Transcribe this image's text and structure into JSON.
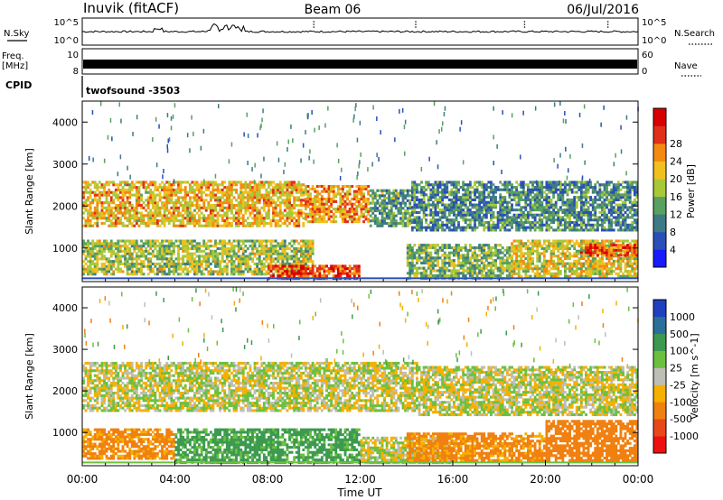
{
  "header": {
    "station": "Inuvik (fitACF)",
    "beam": "Beam 06",
    "date": "06/Jul/2016"
  },
  "top_panels": {
    "noise_label": "N.Sky",
    "noise_ticks": [
      "10^5",
      "10^0"
    ],
    "noise_right_ticks": [
      "10^5",
      "10^0"
    ],
    "noise_search_label": "N.Search",
    "freq_label_1": "Freq.",
    "freq_label_2": "[MHz]",
    "freq_ticks": [
      "10",
      "8"
    ],
    "nave_ticks": [
      "60",
      "0"
    ],
    "nave_label": "Nave",
    "cpid_label": "CPID",
    "cpid_value": "twofsound -3503"
  },
  "x_axis": {
    "title": "Time UT",
    "ticks": [
      "00:00",
      "04:00",
      "08:00",
      "12:00",
      "16:00",
      "20:00",
      "00:00"
    ],
    "range_hours": [
      0,
      24
    ]
  },
  "chart_data": [
    {
      "type": "heatmap",
      "panel": "power",
      "ylabel": "Slant Range [km]",
      "yticks": [
        "1000",
        "2000",
        "3000",
        "4000"
      ],
      "ylim": [
        200,
        4500
      ],
      "colorbar_label": "Power [dB]",
      "colorbar_ticks": [
        "4",
        "8",
        "12",
        "16",
        "20",
        "24",
        "28"
      ],
      "colorbar_colors": [
        "#1a1aff",
        "#2a4fb8",
        "#3d7a86",
        "#5aa060",
        "#a8c83a",
        "#f0c020",
        "#f58a10",
        "#e03018",
        "#d80000"
      ],
      "bands": [
        {
          "t0": 0.0,
          "t1": 9.6,
          "r0": 1500,
          "r1": 2600,
          "level": 20
        },
        {
          "t0": 9.6,
          "t1": 12.4,
          "r0": 1600,
          "r1": 2500,
          "level": 22
        },
        {
          "t0": 12.4,
          "t1": 14.2,
          "r0": 1500,
          "r1": 2400,
          "level": 12
        },
        {
          "t0": 14.2,
          "t1": 24.0,
          "r0": 1400,
          "r1": 2600,
          "level": 10
        },
        {
          "t0": 0.0,
          "t1": 10.0,
          "r0": 350,
          "r1": 1200,
          "level": 16
        },
        {
          "t0": 8.0,
          "t1": 12.0,
          "r0": 250,
          "r1": 600,
          "level": 27
        },
        {
          "t0": 14.0,
          "t1": 18.5,
          "r0": 250,
          "r1": 1100,
          "level": 14
        },
        {
          "t0": 18.5,
          "t1": 24.0,
          "r0": 300,
          "r1": 1200,
          "level": 18
        },
        {
          "t0": 21.5,
          "t1": 24.0,
          "r0": 800,
          "r1": 1100,
          "level": 26
        }
      ]
    },
    {
      "type": "heatmap",
      "panel": "velocity",
      "ylabel": "Slant Range [km]",
      "yticks": [
        "1000",
        "2000",
        "3000",
        "4000"
      ],
      "ylim": [
        200,
        4500
      ],
      "colorbar_label": "Velocity [m s^-1]",
      "colorbar_ticks": [
        "1000",
        "500",
        "100",
        "25",
        "-25",
        "-100",
        "-500",
        "-1000"
      ],
      "colorbar_colors": [
        "#2040c0",
        "#2c6f9a",
        "#3c9a50",
        "#6cc040",
        "#bebeb8",
        "#f5b000",
        "#f08010",
        "#e84818",
        "#ee1010"
      ],
      "bands": [
        {
          "t0": 0.0,
          "t1": 14.5,
          "r0": 1500,
          "r1": 2700,
          "level": 0
        },
        {
          "t0": 14.5,
          "t1": 24.0,
          "r0": 1400,
          "r1": 2600,
          "level": 0
        },
        {
          "t0": 0.0,
          "t1": 4.0,
          "r0": 350,
          "r1": 1100,
          "level": -150
        },
        {
          "t0": 4.0,
          "t1": 12.0,
          "r0": 250,
          "r1": 1100,
          "level": 150
        },
        {
          "t0": 12.0,
          "t1": 16.0,
          "r0": 250,
          "r1": 900,
          "level": 0
        },
        {
          "t0": 14.0,
          "t1": 20.0,
          "r0": 300,
          "r1": 1000,
          "level": -150
        },
        {
          "t0": 20.0,
          "t1": 24.0,
          "r0": 300,
          "r1": 1300,
          "level": -400
        }
      ]
    }
  ],
  "colors": {
    "axis": "#000000",
    "background": "#ffffff"
  }
}
